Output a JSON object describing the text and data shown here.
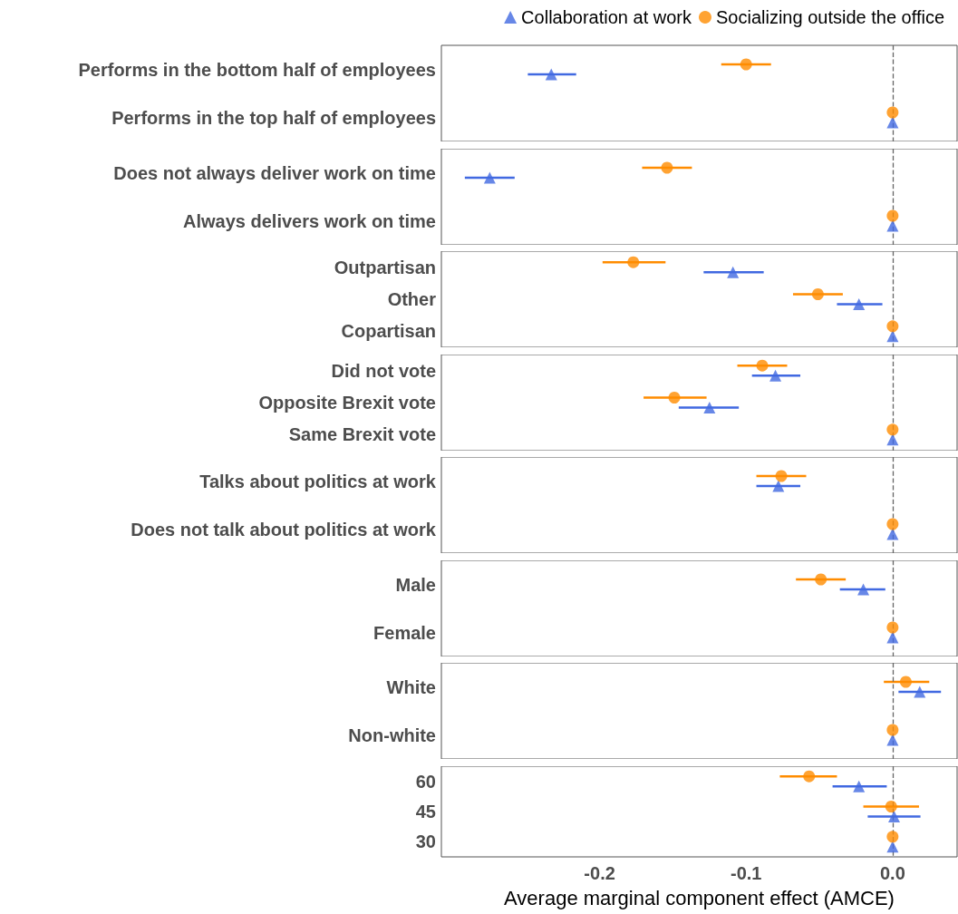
{
  "chart_data": [
    {
      "type": "scatter",
      "orientation": "horizontal",
      "categories": [
        "Performs in the bottom half of employees",
        "Performs in the top half of employees"
      ],
      "legend": "top right",
      "tick_labels": "y",
      "grid": false,
      "xlim": [
        -0.308,
        0.044
      ],
      "ref_lines": [
        {
          "axis": "x",
          "value": 0,
          "line_style": "dashed",
          "color": "#666666"
        }
      ],
      "series": [
        {
          "name": "Collaboration at work",
          "color": "#4169e1",
          "marker": "triangle",
          "values": [
            -0.233,
            0
          ],
          "errors": [
            [
              -0.249,
              -0.216
            ],
            null
          ]
        },
        {
          "name": "Socializing outside the office",
          "color": "#ff8c00",
          "marker": "circle",
          "values": [
            -0.1,
            0
          ],
          "errors": [
            [
              -0.117,
              -0.083
            ],
            null
          ]
        }
      ]
    },
    {
      "type": "scatter",
      "orientation": "horizontal",
      "categories": [
        "Does not always deliver work on time",
        "Always delivers work on time"
      ],
      "tick_labels": "y",
      "grid": false,
      "xlim": [
        -0.308,
        0.044
      ],
      "ref_lines": [
        {
          "axis": "x",
          "value": 0,
          "line_style": "dashed",
          "color": "#666666"
        }
      ],
      "series": [
        {
          "color": "#4169e1",
          "marker": "triangle",
          "values": [
            -0.275,
            0
          ],
          "errors": [
            [
              -0.292,
              -0.258
            ],
            null
          ]
        },
        {
          "color": "#ff8c00",
          "marker": "circle",
          "values": [
            -0.154,
            0
          ],
          "errors": [
            [
              -0.171,
              -0.137
            ],
            null
          ]
        }
      ]
    },
    {
      "type": "scatter",
      "orientation": "horizontal",
      "categories": [
        "Outpartisan",
        "Other",
        "Copartisan"
      ],
      "tick_labels": "y",
      "grid": false,
      "xlim": [
        -0.308,
        0.044
      ],
      "ref_lines": [
        {
          "axis": "x",
          "value": 0,
          "line_style": "dashed",
          "color": "#666666"
        }
      ],
      "series": [
        {
          "color": "#4169e1",
          "marker": "triangle",
          "values": [
            -0.109,
            -0.023,
            0
          ],
          "errors": [
            [
              -0.129,
              -0.088
            ],
            [
              -0.038,
              -0.007
            ],
            null
          ]
        },
        {
          "color": "#ff8c00",
          "marker": "circle",
          "values": [
            -0.177,
            -0.051,
            0
          ],
          "errors": [
            [
              -0.198,
              -0.155
            ],
            [
              -0.068,
              -0.034
            ],
            null
          ]
        }
      ]
    },
    {
      "type": "scatter",
      "orientation": "horizontal",
      "categories": [
        "Did not vote",
        "Opposite Brexit vote",
        "Same Brexit vote"
      ],
      "tick_labels": "y",
      "grid": false,
      "xlim": [
        -0.308,
        0.044
      ],
      "ref_lines": [
        {
          "axis": "x",
          "value": 0,
          "line_style": "dashed",
          "color": "#666666"
        }
      ],
      "series": [
        {
          "color": "#4169e1",
          "marker": "triangle",
          "values": [
            -0.08,
            -0.125,
            0
          ],
          "errors": [
            [
              -0.096,
              -0.063
            ],
            [
              -0.146,
              -0.105
            ],
            null
          ]
        },
        {
          "color": "#ff8c00",
          "marker": "circle",
          "values": [
            -0.089,
            -0.149,
            0
          ],
          "errors": [
            [
              -0.106,
              -0.072
            ],
            [
              -0.17,
              -0.127
            ],
            null
          ]
        }
      ]
    },
    {
      "type": "scatter",
      "orientation": "horizontal",
      "categories": [
        "Talks about politics at work",
        "Does not talk about politics at work"
      ],
      "tick_labels": "y",
      "grid": false,
      "xlim": [
        -0.308,
        0.044
      ],
      "ref_lines": [
        {
          "axis": "x",
          "value": 0,
          "line_style": "dashed",
          "color": "#666666"
        }
      ],
      "series": [
        {
          "color": "#4169e1",
          "marker": "triangle",
          "values": [
            -0.078,
            0
          ],
          "errors": [
            [
              -0.093,
              -0.063
            ],
            null
          ]
        },
        {
          "color": "#ff8c00",
          "marker": "circle",
          "values": [
            -0.076,
            0
          ],
          "errors": [
            [
              -0.093,
              -0.059
            ],
            null
          ]
        }
      ]
    },
    {
      "type": "scatter",
      "orientation": "horizontal",
      "categories": [
        "Male",
        "Female"
      ],
      "tick_labels": "y",
      "grid": false,
      "xlim": [
        -0.308,
        0.044
      ],
      "ref_lines": [
        {
          "axis": "x",
          "value": 0,
          "line_style": "dashed",
          "color": "#666666"
        }
      ],
      "series": [
        {
          "color": "#4169e1",
          "marker": "triangle",
          "values": [
            -0.02,
            0
          ],
          "errors": [
            [
              -0.036,
              -0.005
            ],
            null
          ]
        },
        {
          "color": "#ff8c00",
          "marker": "circle",
          "values": [
            -0.049,
            0
          ],
          "errors": [
            [
              -0.066,
              -0.032
            ],
            null
          ]
        }
      ]
    },
    {
      "type": "scatter",
      "orientation": "horizontal",
      "categories": [
        "White",
        "Non-white"
      ],
      "tick_labels": "y",
      "grid": false,
      "xlim": [
        -0.308,
        0.044
      ],
      "ref_lines": [
        {
          "axis": "x",
          "value": 0,
          "line_style": "dashed",
          "color": "#666666"
        }
      ],
      "series": [
        {
          "color": "#4169e1",
          "marker": "triangle",
          "values": [
            0.0185,
            0
          ],
          "errors": [
            [
              0.004,
              0.033
            ],
            null
          ]
        },
        {
          "color": "#ff8c00",
          "marker": "circle",
          "values": [
            0.009,
            0
          ],
          "errors": [
            [
              -0.006,
              0.025
            ],
            null
          ]
        }
      ]
    },
    {
      "type": "scatter",
      "orientation": "horizontal",
      "categories": [
        "60",
        "45",
        "30"
      ],
      "xlabel": "Average marginal component effect (AMCE)",
      "grid": false,
      "xlim": [
        -0.308,
        0.044
      ],
      "xticks": [
        -0.2,
        -0.1,
        {
          "value": 0,
          "label": "0.0"
        }
      ],
      "ref_lines": [
        {
          "axis": "x",
          "value": 0,
          "line_style": "dashed",
          "color": "#666666"
        }
      ],
      "series": [
        {
          "color": "#4169e1",
          "marker": "triangle",
          "values": [
            -0.023,
            0.001,
            0
          ],
          "errors": [
            [
              -0.041,
              -0.004
            ],
            [
              -0.017,
              0.019
            ],
            null
          ]
        },
        {
          "color": "#ff8c00",
          "marker": "circle",
          "values": [
            -0.057,
            -0.001,
            0
          ],
          "errors": [
            [
              -0.077,
              -0.038
            ],
            [
              -0.02,
              0.018
            ],
            null
          ]
        }
      ]
    }
  ]
}
